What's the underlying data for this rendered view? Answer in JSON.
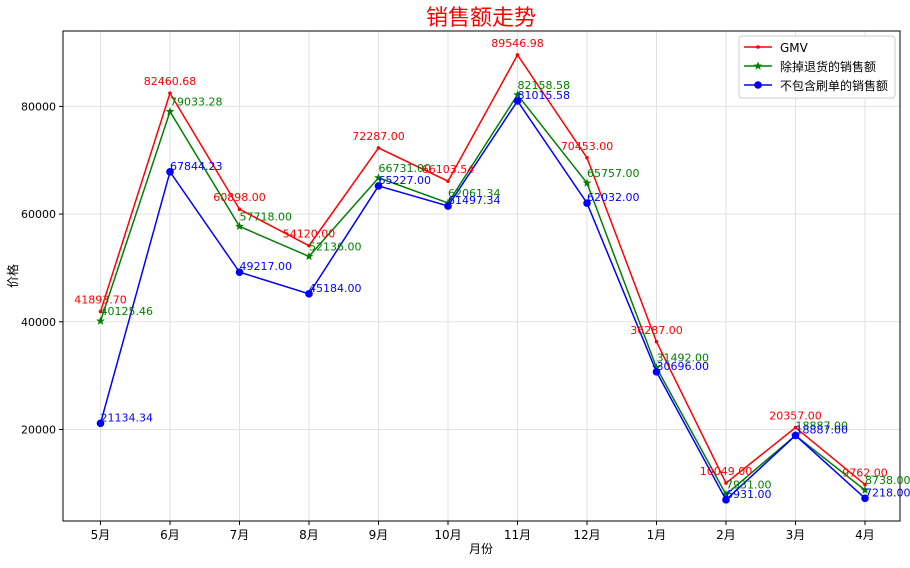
{
  "chart_data": {
    "type": "line",
    "title": "销售额走势",
    "xlabel": "月份",
    "ylabel": "价格",
    "categories": [
      "5月",
      "6月",
      "7月",
      "8月",
      "9月",
      "10月",
      "11月",
      "12月",
      "1月",
      "2月",
      "3月",
      "4月"
    ],
    "ylim": [
      3000,
      94000
    ],
    "yticks": [
      20000,
      40000,
      60000,
      80000
    ],
    "ytick_labels": [
      "20000",
      "40000",
      "60000",
      "80000"
    ],
    "grid": true,
    "legend_position": "top-right",
    "series": [
      {
        "name": "GMV",
        "color": "#ff0000",
        "marker": "point",
        "values": [
          41893.7,
          82460.68,
          60898.0,
          54120.0,
          72287.0,
          66103.54,
          89546.98,
          70453.0,
          36287.0,
          10049.0,
          20357.0,
          9762.0
        ],
        "labels": [
          "41893.70",
          "82460.68",
          "60898.00",
          "54120.00",
          "72287.00",
          "66103.54",
          "89546.98",
          "70453.00",
          "36287.00",
          "10049.00",
          "20357.00",
          "9762.00"
        ]
      },
      {
        "name": "除掉退货的销售额",
        "color": "#008000",
        "marker": "star",
        "values": [
          40125.46,
          79033.28,
          57718.0,
          52136.0,
          66731.0,
          62061.34,
          82158.58,
          65757.0,
          31492.0,
          7931.0,
          18887.0,
          8738.0
        ],
        "labels": [
          "40125.46",
          "79033.28",
          "57718.00",
          "52136.00",
          "66731.00",
          "62061.34",
          "82158.58",
          "65757.00",
          "31492.00",
          "7931.00",
          "18887.00",
          "8738.00"
        ]
      },
      {
        "name": "不包含刷单的销售额",
        "color": "#0000ff",
        "marker": "circle",
        "values": [
          21134.34,
          67844.23,
          49217.0,
          45184.0,
          65227.0,
          61497.34,
          81015.58,
          62032.0,
          30696.0,
          6931.0,
          18887.0,
          7218.0
        ],
        "labels": [
          "21134.34",
          "67844.23",
          "49217.00",
          "45184.00",
          "65227.00",
          "61497.34",
          "81015.58",
          "62032.00",
          "30696.00",
          "6931.00",
          "18887.00",
          "7218.00"
        ]
      }
    ]
  }
}
